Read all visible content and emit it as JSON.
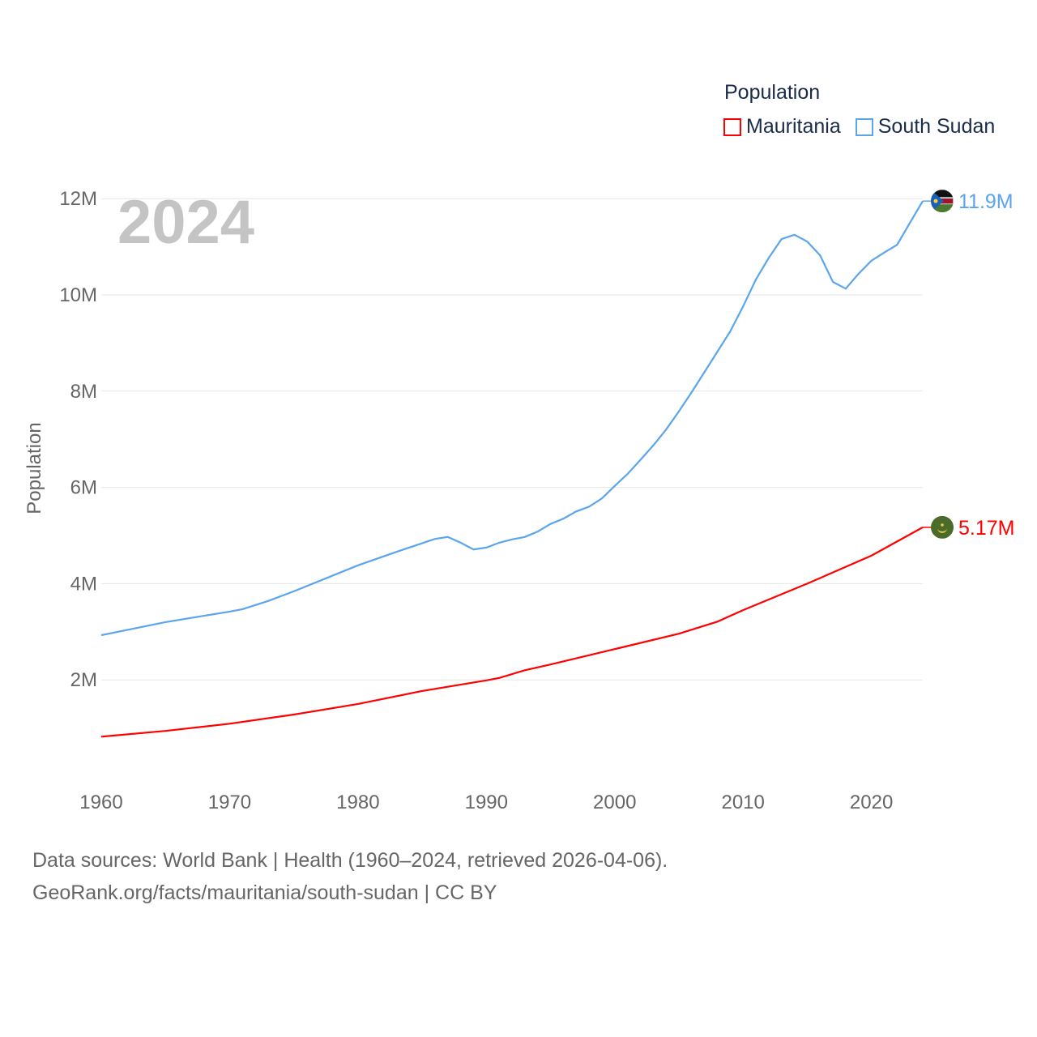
{
  "chart_data": {
    "type": "line",
    "title": "Population",
    "year_watermark": "2024",
    "ylabel": "Population",
    "xlabel": "",
    "xlim": [
      1960,
      2024
    ],
    "ylim": [
      0,
      12000000
    ],
    "x_ticks": [
      "1960",
      "1970",
      "1980",
      "1990",
      "2000",
      "2010",
      "2020"
    ],
    "y_ticks": [
      {
        "value": 2000000,
        "label": "2M"
      },
      {
        "value": 4000000,
        "label": "4M"
      },
      {
        "value": 6000000,
        "label": "6M"
      },
      {
        "value": 8000000,
        "label": "8M"
      },
      {
        "value": 10000000,
        "label": "10M"
      },
      {
        "value": 12000000,
        "label": "12M"
      }
    ],
    "grid": true,
    "legend_position": "top-right",
    "series": [
      {
        "name": "Mauritania",
        "color": "#ff0000",
        "end_label": "5.17M",
        "flag": "mauritania",
        "x": [
          1960,
          1965,
          1970,
          1975,
          1980,
          1985,
          1990,
          1991,
          1993,
          1995,
          2000,
          2005,
          2008,
          2010,
          2015,
          2020,
          2024
        ],
        "y": [
          0.82,
          0.94,
          1.09,
          1.28,
          1.5,
          1.77,
          1.99,
          2.04,
          2.2,
          2.32,
          2.64,
          2.96,
          3.21,
          3.45,
          4.0,
          4.58,
          5.17
        ]
      },
      {
        "name": "South Sudan",
        "color": "#5aa5ee",
        "end_label": "11.9M",
        "flag": "south-sudan",
        "x": [
          1960,
          1965,
          1970,
          1971,
          1973,
          1975,
          1980,
          1983,
          1986,
          1987,
          1988,
          1989,
          1990,
          1991,
          1992,
          1993,
          1994,
          1995,
          1996,
          1997,
          1998,
          1999,
          2000,
          2001,
          2002,
          2003,
          2004,
          2005,
          2006,
          2007,
          2008,
          2009,
          2010,
          2011,
          2012,
          2013,
          2014,
          2015,
          2016,
          2017,
          2018,
          2019,
          2020,
          2021,
          2022,
          2023,
          2024
        ],
        "y": [
          2.93,
          3.2,
          3.42,
          3.47,
          3.64,
          3.84,
          4.38,
          4.66,
          4.93,
          4.97,
          4.85,
          4.71,
          4.75,
          4.85,
          4.92,
          4.97,
          5.08,
          5.24,
          5.35,
          5.5,
          5.6,
          5.77,
          6.03,
          6.28,
          6.57,
          6.87,
          7.2,
          7.58,
          7.98,
          8.4,
          8.82,
          9.24,
          9.76,
          10.32,
          10.77,
          11.16,
          11.25,
          11.11,
          10.82,
          10.27,
          10.13,
          10.44,
          10.71,
          10.88,
          11.04,
          11.5,
          11.95
        ]
      }
    ],
    "y_units": "millions"
  },
  "footer": {
    "line1": "Data sources: World Bank | Health (1960–2024, retrieved 2026-04-06).",
    "line2": "GeoRank.org/facts/mauritania/south-sudan | CC BY"
  }
}
